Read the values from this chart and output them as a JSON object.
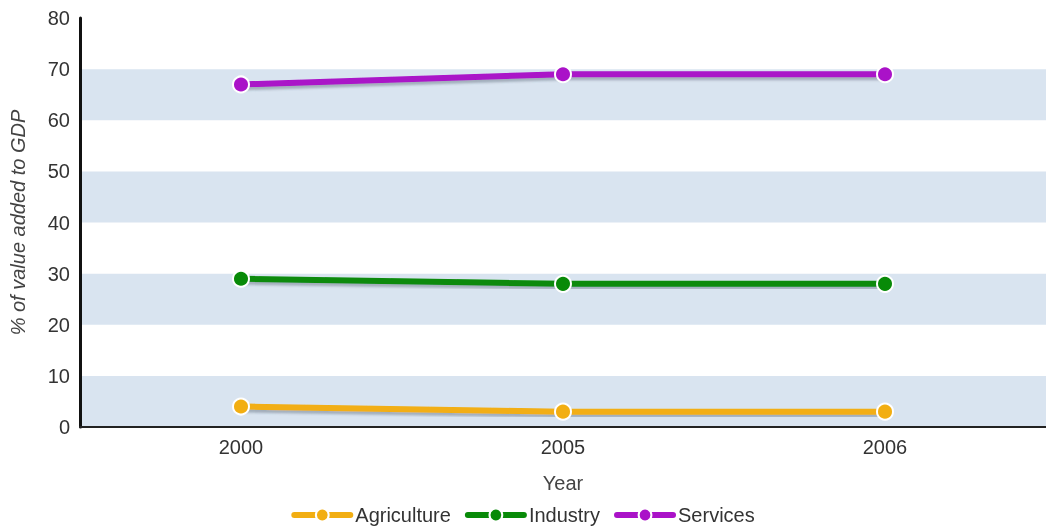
{
  "chart_data": {
    "type": "line",
    "xlabel": "Year",
    "ylabel": "% of value added to GDP",
    "categories": [
      "2000",
      "2005",
      "2006"
    ],
    "series": [
      {
        "name": "Agriculture",
        "color": "#f2ae12",
        "values": [
          4,
          3,
          3
        ]
      },
      {
        "name": "Industry",
        "color": "#088a08",
        "values": [
          29,
          28,
          28
        ]
      },
      {
        "name": "Services",
        "color": "#aa12c8",
        "values": [
          67,
          69,
          69
        ]
      }
    ],
    "ylim": [
      0,
      80
    ],
    "yticks": [
      0,
      10,
      20,
      30,
      40,
      50,
      60,
      70,
      80
    ],
    "bands": [
      {
        "axis": "y",
        "from": 0,
        "to": 10,
        "color": "#d9e4f0"
      },
      {
        "axis": "y",
        "from": 20,
        "to": 30,
        "color": "#d9e4f0"
      },
      {
        "axis": "y",
        "from": 40,
        "to": 50,
        "color": "#d9e4f0"
      },
      {
        "axis": "y",
        "from": 60,
        "to": 70,
        "color": "#d9e4f0"
      }
    ],
    "legend": "bottom",
    "marker": "circle",
    "line_style": "solid"
  }
}
